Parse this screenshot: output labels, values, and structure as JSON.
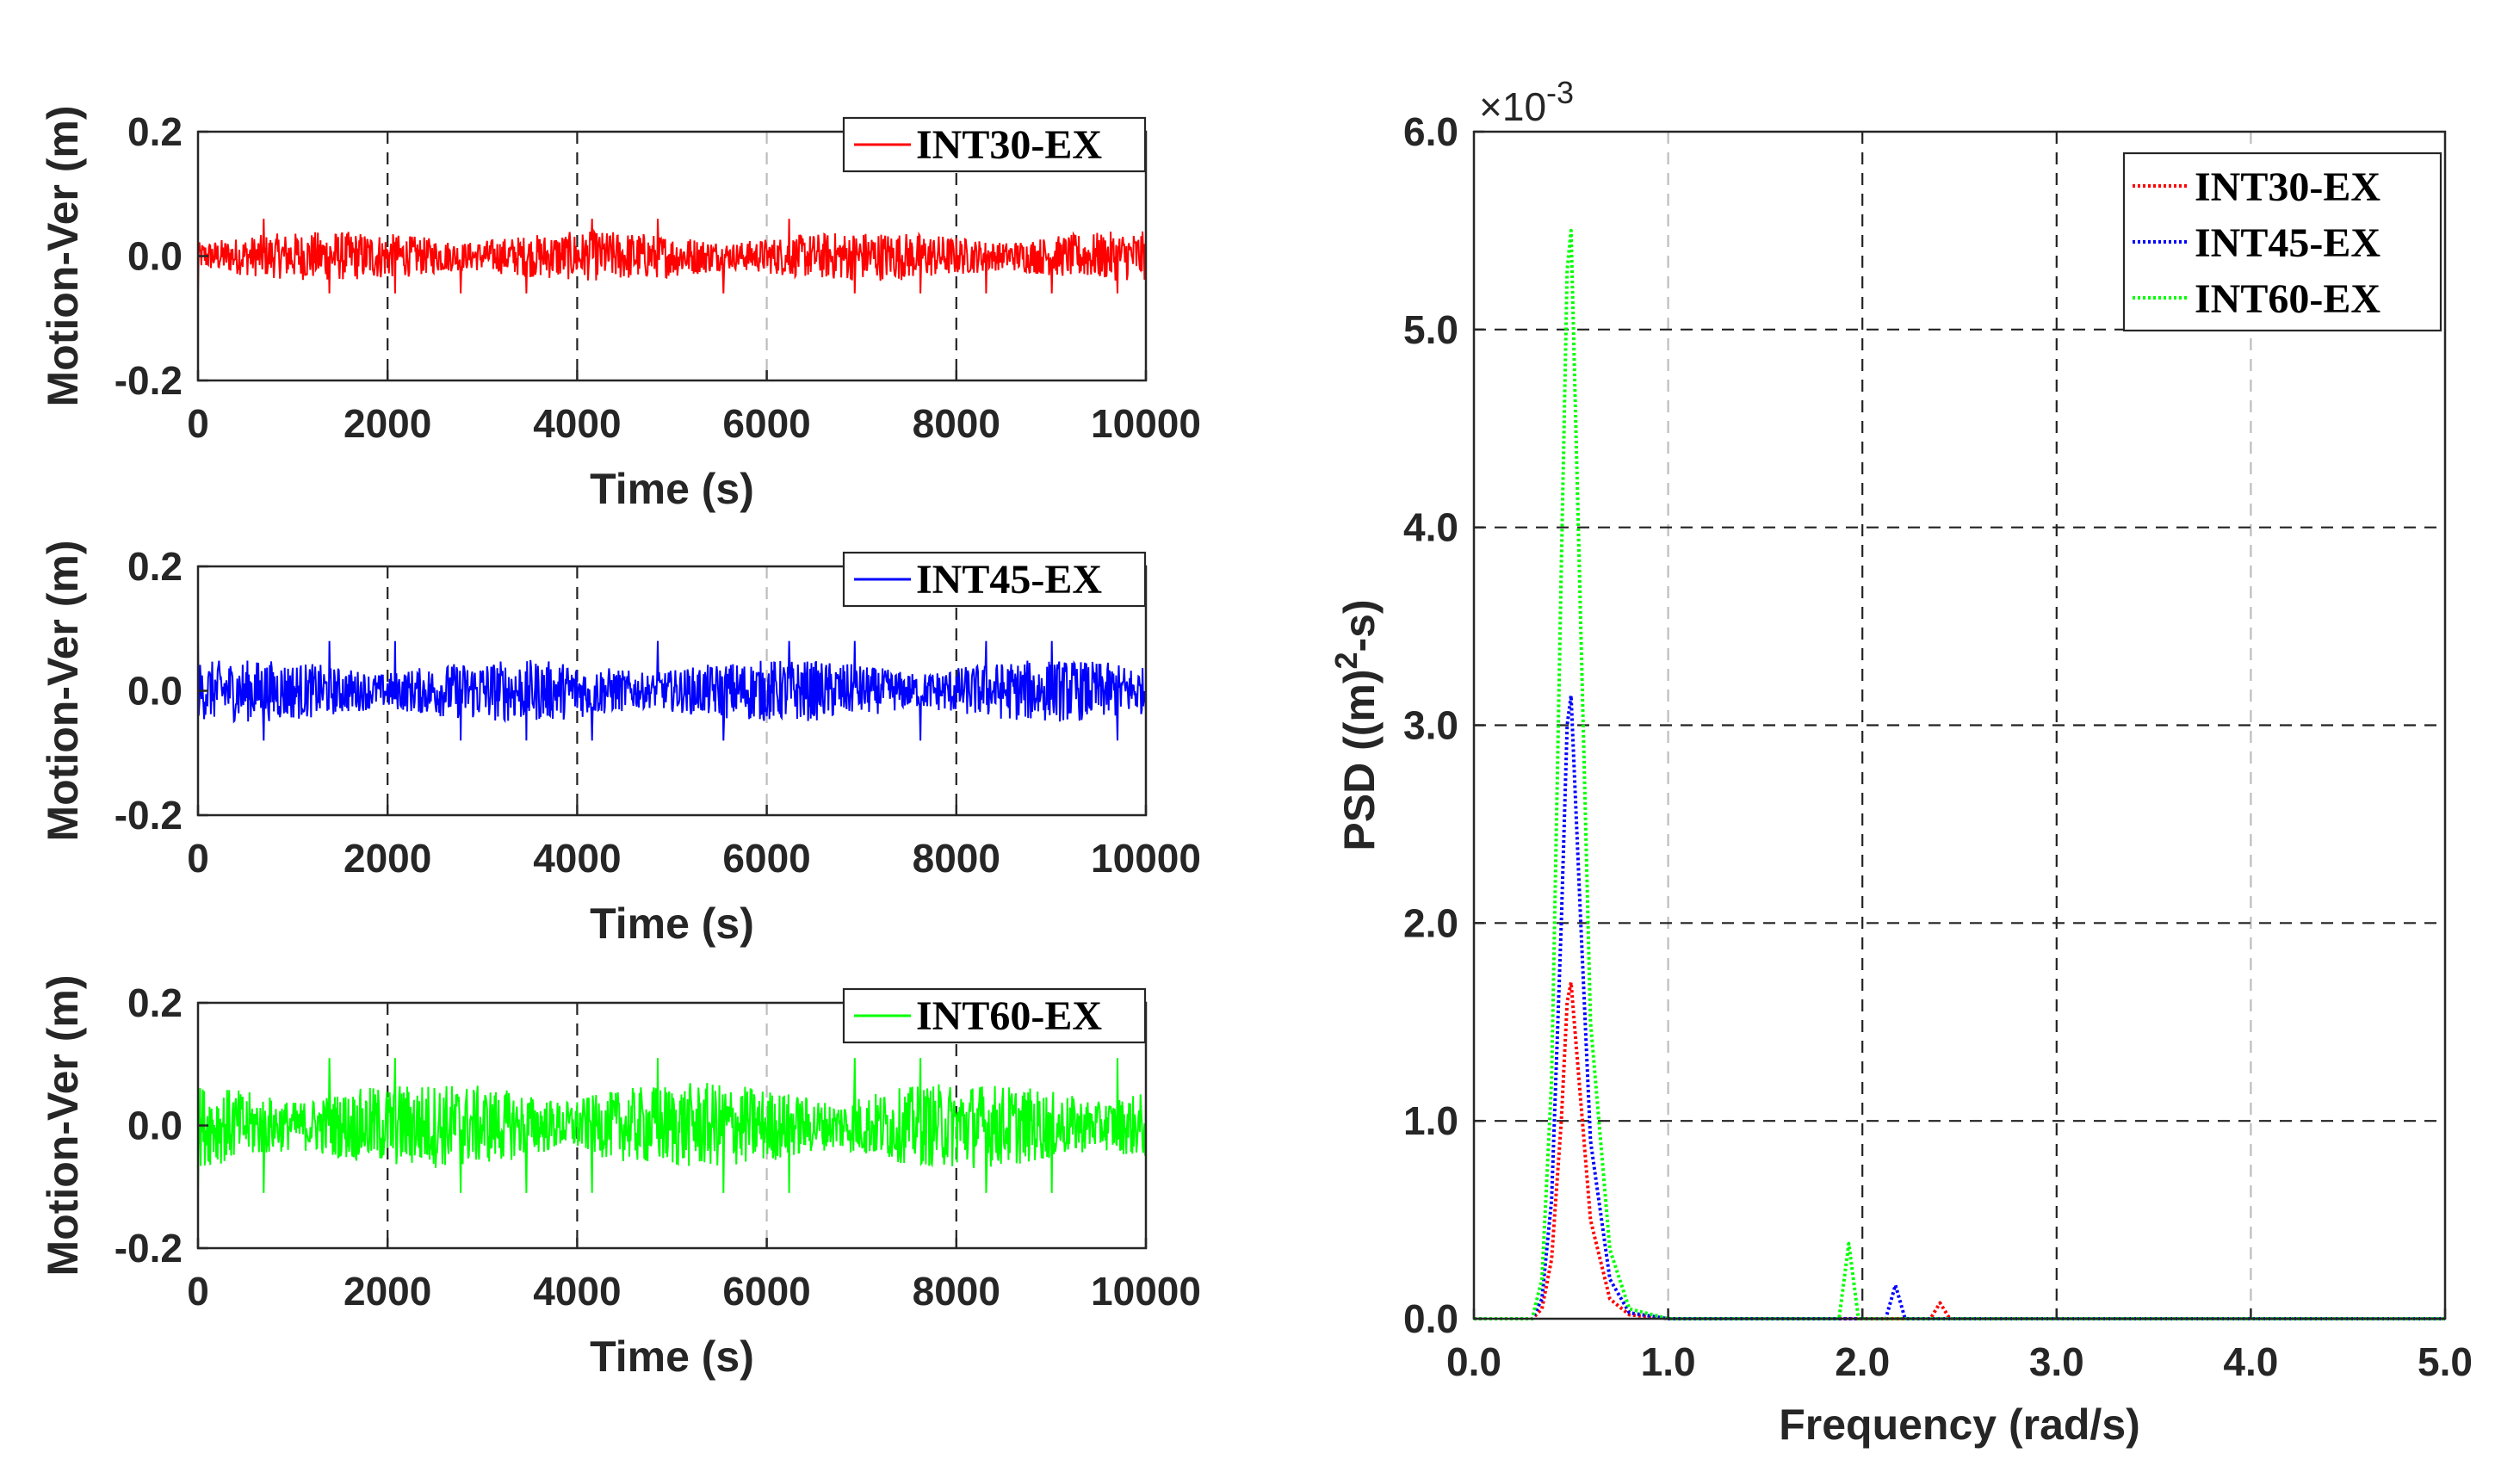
{
  "chart_data": [
    {
      "type": "line",
      "xlabel": "Time (s)",
      "ylabel": "Motion-Ver (m)",
      "xlim": [
        0,
        10000
      ],
      "ylim": [
        -0.2,
        0.2
      ],
      "xticks": [
        "0",
        "2000",
        "4000",
        "6000",
        "8000",
        "10000"
      ],
      "yticks": [
        "-0.2",
        "0.0",
        "0.2"
      ],
      "grid": "vertical dashed",
      "legend_position": "top-right",
      "series": [
        {
          "name": "INT30-EX",
          "color": "#ff0000",
          "amplitude": 0.04,
          "peak_amplitude": 0.06,
          "description": "random wave vertical motion time series around 0"
        }
      ]
    },
    {
      "type": "line",
      "xlabel": "Time (s)",
      "ylabel": "Motion-Ver (m)",
      "xlim": [
        0,
        10000
      ],
      "ylim": [
        -0.2,
        0.2
      ],
      "xticks": [
        "0",
        "2000",
        "4000",
        "6000",
        "8000",
        "10000"
      ],
      "yticks": [
        "-0.2",
        "0.0",
        "0.2"
      ],
      "grid": "vertical dashed",
      "legend_position": "top-right",
      "series": [
        {
          "name": "INT45-EX",
          "color": "#0000ff",
          "amplitude": 0.05,
          "peak_amplitude": 0.08,
          "description": "random wave vertical motion time series around 0"
        }
      ]
    },
    {
      "type": "line",
      "xlabel": "Time (s)",
      "ylabel": "Motion-Ver (m)",
      "xlim": [
        0,
        10000
      ],
      "ylim": [
        -0.2,
        0.2
      ],
      "xticks": [
        "0",
        "2000",
        "4000",
        "6000",
        "8000",
        "10000"
      ],
      "yticks": [
        "-0.2",
        "0.0",
        "0.2"
      ],
      "grid": "vertical dashed",
      "legend_position": "top-right",
      "series": [
        {
          "name": "INT60-EX",
          "color": "#00ff00",
          "amplitude": 0.07,
          "peak_amplitude": 0.11,
          "description": "random wave vertical motion time series around 0"
        }
      ]
    },
    {
      "type": "line",
      "xlabel": "Frequency (rad/s)",
      "ylabel_main": "PSD ((m)",
      "ylabel_sup": "2",
      "ylabel_end": "-s)",
      "exponent_base": "×10",
      "exponent_power": "-3",
      "xlim": [
        0,
        5
      ],
      "ylim": [
        0,
        6
      ],
      "xticks": [
        "0.0",
        "1.0",
        "2.0",
        "3.0",
        "4.0",
        "5.0"
      ],
      "yticks": [
        "0.0",
        "1.0",
        "2.0",
        "3.0",
        "4.0",
        "5.0",
        "6.0"
      ],
      "grid": "both dashed",
      "legend_position": "top-right",
      "series": [
        {
          "name": "INT30-EX",
          "color": "#ff0000",
          "line_style": "dotted",
          "x": [
            0.0,
            0.3,
            0.35,
            0.4,
            0.45,
            0.48,
            0.5,
            0.55,
            0.6,
            0.7,
            0.8,
            1.0,
            2.35,
            2.4,
            2.45,
            5.0
          ],
          "y": [
            0.0,
            0.0,
            0.05,
            0.3,
            1.0,
            1.6,
            1.7,
            1.1,
            0.5,
            0.1,
            0.02,
            0.0,
            0.0,
            0.08,
            0.0,
            0.0
          ]
        },
        {
          "name": "INT45-EX",
          "color": "#0000ff",
          "line_style": "dotted",
          "x": [
            0.0,
            0.3,
            0.35,
            0.4,
            0.45,
            0.48,
            0.5,
            0.55,
            0.6,
            0.7,
            0.8,
            1.0,
            2.12,
            2.17,
            2.22,
            5.0
          ],
          "y": [
            0.0,
            0.0,
            0.1,
            0.6,
            2.0,
            3.0,
            3.15,
            2.0,
            0.9,
            0.2,
            0.03,
            0.0,
            0.0,
            0.17,
            0.0,
            0.0
          ]
        },
        {
          "name": "INT60-EX",
          "color": "#00ff00",
          "line_style": "dotted",
          "x": [
            0.0,
            0.3,
            0.35,
            0.4,
            0.45,
            0.48,
            0.5,
            0.55,
            0.6,
            0.7,
            0.8,
            1.0,
            1.88,
            1.93,
            1.98,
            5.0
          ],
          "y": [
            0.0,
            0.0,
            0.2,
            1.2,
            3.8,
            5.3,
            5.5,
            3.5,
            1.5,
            0.35,
            0.05,
            0.0,
            0.0,
            0.38,
            0.0,
            0.0
          ]
        }
      ]
    }
  ]
}
